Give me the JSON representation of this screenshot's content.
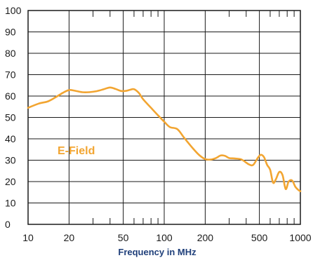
{
  "chart_data": {
    "type": "line",
    "title": "",
    "xlabel": "Frequency in MHz",
    "ylabel": "",
    "x_scale": "log",
    "xlim": [
      10,
      1000
    ],
    "ylim": [
      0,
      100
    ],
    "grid": true,
    "x_ticks": [
      10,
      20,
      50,
      100,
      200,
      500,
      1000
    ],
    "x_tick_labels": [
      "10",
      "20",
      "50",
      "100",
      "200",
      "500",
      "1000"
    ],
    "y_ticks": [
      0,
      10,
      20,
      30,
      40,
      50,
      60,
      70,
      80,
      90,
      100
    ],
    "y_tick_labels": [
      "0",
      "10",
      "20",
      "30",
      "40",
      "50",
      "60",
      "70",
      "80",
      "90",
      "100"
    ],
    "series": [
      {
        "name": "E-Field",
        "color": "#f2a531",
        "x": [
          10,
          12,
          14,
          16,
          18,
          20,
          22,
          25,
          28,
          32,
          36,
          40,
          44,
          48,
          52,
          56,
          60,
          65,
          70,
          80,
          90,
          100,
          110,
          125,
          140,
          160,
          180,
          200,
          220,
          240,
          260,
          280,
          300,
          330,
          370,
          420,
          450,
          480,
          510,
          540,
          570,
          600,
          630,
          660,
          700,
          740,
          780,
          820,
          870,
          920,
          970,
          1000
        ],
        "y": [
          54.5,
          56.5,
          57.5,
          59.5,
          61.5,
          62.8,
          62.5,
          61.8,
          61.8,
          62.3,
          63.2,
          64.0,
          63.3,
          62.4,
          62.4,
          62.9,
          63.2,
          61.5,
          58.5,
          54.5,
          51.0,
          48.0,
          45.5,
          44.5,
          40.5,
          36.0,
          32.5,
          30.5,
          30.3,
          31.0,
          32.2,
          32.0,
          31.0,
          30.8,
          30.3,
          28.0,
          27.8,
          30.5,
          32.5,
          31.5,
          27.8,
          25.5,
          19.5,
          21.0,
          24.5,
          23.0,
          16.5,
          20.0,
          20.5,
          17.5,
          16.0,
          15.5
        ]
      }
    ]
  }
}
